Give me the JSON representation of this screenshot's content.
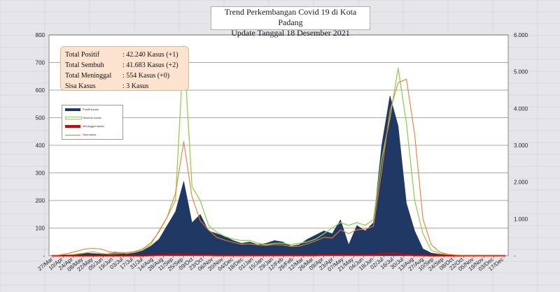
{
  "title": {
    "line1": "Trend Perkembangan Covid 19 di Kota Padang",
    "line2": "Update Tanggal 18 Desember 2021"
  },
  "stats": [
    {
      "label": "Total Positif",
      "value": ": 42.240 Kasus (+1)"
    },
    {
      "label": "Total Sembuh",
      "value": ": 41.683 Kasus (+2)"
    },
    {
      "label": "Total Meninggal",
      "value": ": 554 Kasus (+0)"
    },
    {
      "label": "Sisa Kasus",
      "value": ": 3 Kasus"
    }
  ],
  "colors": {
    "positif": "#1f3864",
    "sembuh": "#92d050",
    "meninggal": "#e00000",
    "sisa": "#ed7d31"
  },
  "chart_data": {
    "type": "area",
    "left_axis": {
      "ylim": [
        0,
        800
      ],
      "ticks": [
        "-",
        "100",
        "200",
        "300",
        "400",
        "500",
        "600",
        "700",
        "800"
      ]
    },
    "right_axis": {
      "ylim": [
        0,
        6000
      ],
      "ticks": [
        "-",
        "1.000",
        "2.000",
        "3.000",
        "4.000",
        "5.000",
        "6.000"
      ]
    },
    "x_ticks": [
      "27/Mar",
      "10/Apr",
      "24/Apr",
      "08/May",
      "22/May",
      "05/Jun",
      "19/Jun",
      "03/Jul",
      "17/Jul",
      "31/Jul",
      "14/Aug",
      "28/Aug",
      "11/Sep",
      "25/Sep",
      "09/Oct",
      "23/Oct",
      "06/Nov",
      "20/Nov",
      "04/Dec",
      "18/Dec",
      "01/Jan",
      "15/Jan",
      "29/Jan",
      "12/Feb",
      "26/Feb",
      "12/Mar",
      "26/Mar",
      "09/Apr",
      "23/Apr",
      "07/May",
      "21/May",
      "04/Jun",
      "18/Jun",
      "02/Jul",
      "16/Jul",
      "30/Jul",
      "13/Aug",
      "27/Aug",
      "10/Sep",
      "24/Sep",
      "08/Oct",
      "22/Oct",
      "05/Nov",
      "19/Nov",
      "03/Dec",
      "17/Dec"
    ],
    "legend": [
      {
        "name": "Positif harian",
        "key": "positif"
      },
      {
        "name": "Sembuh harian",
        "key": "sembuh"
      },
      {
        "name": "Meninggal harian",
        "key": "meninggal"
      },
      {
        "name": "Sisa kasus",
        "key": "sisa"
      }
    ],
    "series": [
      {
        "name": "Positif harian",
        "axis": "left",
        "values": [
          0,
          2,
          3,
          5,
          10,
          8,
          6,
          8,
          12,
          6,
          10,
          18,
          35,
          60,
          110,
          160,
          270,
          120,
          150,
          90,
          80,
          70,
          55,
          45,
          50,
          40,
          45,
          55,
          50,
          35,
          40,
          60,
          75,
          90,
          80,
          130,
          40,
          110,
          90,
          120,
          400,
          580,
          470,
          190,
          90,
          25,
          10,
          5,
          3,
          2,
          1,
          0,
          0,
          0,
          0,
          0
        ]
      },
      {
        "name": "Sembuh harian",
        "axis": "left",
        "values": [
          0,
          0,
          2,
          6,
          10,
          15,
          8,
          6,
          8,
          10,
          12,
          20,
          40,
          90,
          140,
          200,
          760,
          250,
          200,
          110,
          85,
          70,
          60,
          55,
          55,
          45,
          40,
          45,
          45,
          40,
          45,
          50,
          60,
          80,
          100,
          120,
          110,
          120,
          110,
          130,
          350,
          500,
          680,
          480,
          200,
          80,
          20,
          8,
          4,
          2,
          1,
          0,
          0,
          0,
          0,
          0
        ]
      },
      {
        "name": "Meninggal harian",
        "axis": "left",
        "values": [
          0,
          0,
          0,
          0,
          0,
          0,
          0,
          0,
          0,
          0,
          0,
          0,
          1,
          2,
          3,
          4,
          4,
          3,
          2,
          2,
          1,
          1,
          1,
          1,
          1,
          1,
          1,
          1,
          1,
          1,
          1,
          1,
          1,
          2,
          2,
          2,
          2,
          2,
          2,
          3,
          6,
          8,
          6,
          3,
          1,
          1,
          0,
          0,
          0,
          0,
          0,
          0,
          0,
          0,
          0,
          0
        ]
      },
      {
        "name": "Sisa kasus",
        "axis": "right",
        "values": [
          0,
          20,
          60,
          120,
          180,
          200,
          180,
          100,
          90,
          80,
          110,
          180,
          350,
          650,
          1050,
          1700,
          3100,
          1600,
          950,
          700,
          500,
          420,
          360,
          310,
          320,
          290,
          280,
          300,
          290,
          250,
          260,
          320,
          400,
          500,
          480,
          700,
          600,
          700,
          720,
          800,
          2300,
          3950,
          4700,
          4800,
          3300,
          1000,
          300,
          100,
          40,
          15,
          5,
          3,
          3,
          3,
          3,
          3
        ]
      }
    ]
  }
}
